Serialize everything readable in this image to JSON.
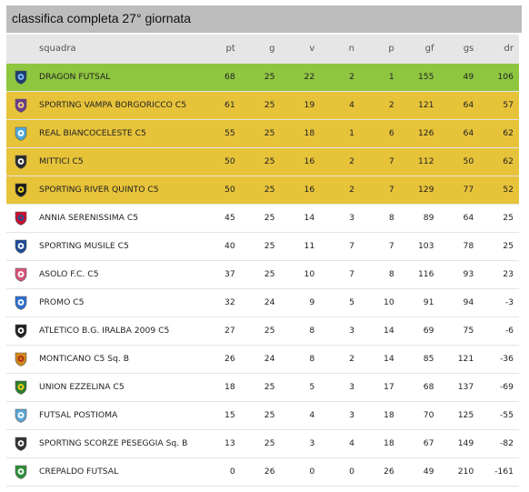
{
  "title": "classifica completa 27° giornata",
  "columns": [
    "squadra",
    "pt",
    "g",
    "v",
    "n",
    "p",
    "gf",
    "gs",
    "dr"
  ],
  "colors": {
    "leader": "#8ec640",
    "promo": "#e7c33a",
    "header": "#e6e6e6",
    "title": "#bdbdbd"
  },
  "rows": [
    {
      "team": "DRAGON FUTSAL",
      "pt": "68",
      "g": "25",
      "v": "22",
      "n": "2",
      "p": "1",
      "gf": "155",
      "gs": "49",
      "dr": "106",
      "status": "leader",
      "icon": "dragon-futsal-crest-icon",
      "c1": "#1d3b6e",
      "c2": "#7ec0ff"
    },
    {
      "team": "SPORTING VAMPA BORGORICCO C5",
      "pt": "61",
      "g": "25",
      "v": "19",
      "n": "4",
      "p": "2",
      "gf": "121",
      "gs": "64",
      "dr": "57",
      "status": "promo",
      "icon": "vampa-crest-icon",
      "c1": "#6a3b8c",
      "c2": "#f5d37a"
    },
    {
      "team": "REAL BIANCOCELESTE C5",
      "pt": "55",
      "g": "25",
      "v": "18",
      "n": "1",
      "p": "6",
      "gf": "126",
      "gs": "64",
      "dr": "62",
      "status": "promo",
      "icon": "biancoceleste-crest-icon",
      "c1": "#4fa9d8",
      "c2": "#ffffff"
    },
    {
      "team": "MITTICI C5",
      "pt": "50",
      "g": "25",
      "v": "16",
      "n": "2",
      "p": "7",
      "gf": "112",
      "gs": "50",
      "dr": "62",
      "status": "promo",
      "icon": "mittici-crest-icon",
      "c1": "#2b2b2b",
      "c2": "#ffffff"
    },
    {
      "team": "SPORTING RIVER QUINTO C5",
      "pt": "50",
      "g": "25",
      "v": "16",
      "n": "2",
      "p": "7",
      "gf": "129",
      "gs": "77",
      "dr": "52",
      "status": "promo",
      "icon": "river-quinto-crest-icon",
      "c1": "#1a1a1a",
      "c2": "#f2d21c"
    },
    {
      "team": "ANNIA SERENISSIMA C5",
      "pt": "45",
      "g": "25",
      "v": "14",
      "n": "3",
      "p": "8",
      "gf": "89",
      "gs": "64",
      "dr": "25",
      "status": "normal",
      "icon": "annia-crest-icon",
      "c1": "#c8102e",
      "c2": "#1f4fa0"
    },
    {
      "team": "SPORTING MUSILE C5",
      "pt": "40",
      "g": "25",
      "v": "11",
      "n": "7",
      "p": "7",
      "gf": "103",
      "gs": "78",
      "dr": "25",
      "status": "normal",
      "icon": "musile-crest-icon",
      "c1": "#1e4c9a",
      "c2": "#ffffff"
    },
    {
      "team": "ASOLO F.C. C5",
      "pt": "37",
      "g": "25",
      "v": "10",
      "n": "7",
      "p": "8",
      "gf": "116",
      "gs": "93",
      "dr": "23",
      "status": "normal",
      "icon": "asolo-crest-icon",
      "c1": "#d8547a",
      "c2": "#ffffff"
    },
    {
      "team": "PROMO C5",
      "pt": "32",
      "g": "24",
      "v": "9",
      "n": "5",
      "p": "10",
      "gf": "91",
      "gs": "94",
      "dr": "-3",
      "status": "normal",
      "icon": "promo-crest-icon",
      "c1": "#2d6fd1",
      "c2": "#ffffff"
    },
    {
      "team": "ATLETICO B.G. IRALBA 2009 C5",
      "pt": "27",
      "g": "25",
      "v": "8",
      "n": "3",
      "p": "14",
      "gf": "69",
      "gs": "75",
      "dr": "-6",
      "status": "normal",
      "icon": "atletico-crest-icon",
      "c1": "#222222",
      "c2": "#ffffff"
    },
    {
      "team": "MONTICANO C5 Sq. B",
      "pt": "26",
      "g": "24",
      "v": "8",
      "n": "2",
      "p": "14",
      "gf": "85",
      "gs": "121",
      "dr": "-36",
      "status": "normal",
      "icon": "monticano-crest-icon",
      "c1": "#d08a1a",
      "c2": "#b3261e"
    },
    {
      "team": "UNION EZZELINA C5",
      "pt": "18",
      "g": "25",
      "v": "5",
      "n": "3",
      "p": "17",
      "gf": "68",
      "gs": "137",
      "dr": "-69",
      "status": "normal",
      "icon": "ezzelina-crest-icon",
      "c1": "#2f7d2f",
      "c2": "#f2d21c"
    },
    {
      "team": "FUTSAL POSTIOMA",
      "pt": "15",
      "g": "25",
      "v": "4",
      "n": "3",
      "p": "18",
      "gf": "70",
      "gs": "125",
      "dr": "-55",
      "status": "normal",
      "icon": "postioma-crest-icon",
      "c1": "#5aa7d6",
      "c2": "#ffffff"
    },
    {
      "team": "SPORTING SCORZE PESEGGIA Sq. B",
      "pt": "13",
      "g": "25",
      "v": "3",
      "n": "4",
      "p": "18",
      "gf": "67",
      "gs": "149",
      "dr": "-82",
      "status": "normal",
      "icon": "scorze-crest-icon",
      "c1": "#333333",
      "c2": "#ffffff"
    },
    {
      "team": "CREPALDO FUTSAL",
      "pt": "0",
      "g": "26",
      "v": "0",
      "n": "0",
      "p": "26",
      "gf": "49",
      "gs": "210",
      "dr": "-161",
      "status": "normal",
      "icon": "crepaldo-crest-icon",
      "c1": "#2f8f3a",
      "c2": "#ffffff"
    }
  ]
}
